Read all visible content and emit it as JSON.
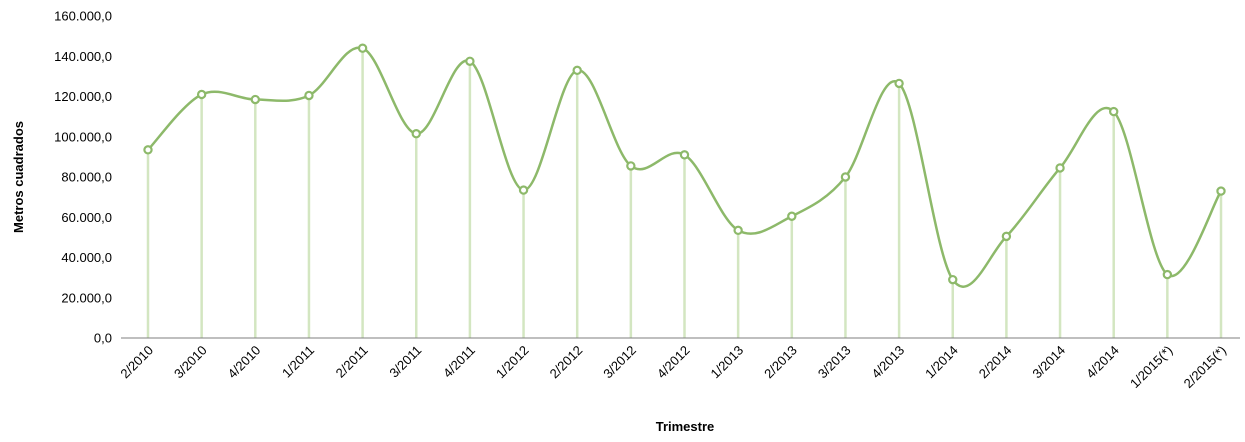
{
  "chart_data": {
    "type": "line",
    "title": "",
    "xlabel": "Trimestre",
    "ylabel": "Metros cuadrados",
    "ylim": [
      0,
      160000
    ],
    "y_ticks": [
      0,
      20000,
      40000,
      60000,
      80000,
      100000,
      120000,
      140000,
      160000
    ],
    "y_tick_labels": [
      "0,0",
      "20.000,0",
      "40.000,0",
      "60.000,0",
      "80.000,0",
      "100.000,0",
      "120.000,0",
      "140.000,0",
      "160.000,0"
    ],
    "grid": false,
    "legend": "none",
    "smoothed": true,
    "drop_lines": true,
    "categories": [
      "2/2010",
      "3/2010",
      "4/2010",
      "1/2011",
      "2/2011",
      "3/2011",
      "4/2011",
      "1/2012",
      "2/2012",
      "3/2012",
      "4/2012",
      "1/2013",
      "2/2013",
      "3/2013",
      "4/2013",
      "1/2014",
      "2/2014",
      "3/2014",
      "4/2014",
      "1/2015(*)",
      "2/2015(*)"
    ],
    "series": [
      {
        "values": [
          93500,
          121000,
          118500,
          120500,
          144000,
          101500,
          137500,
          73500,
          133000,
          85500,
          91000,
          53500,
          60500,
          80000,
          126500,
          29000,
          50500,
          84500,
          112500,
          31500,
          73000
        ]
      }
    ],
    "colors": {
      "line": "#8db96a",
      "marker_fill": "#ffffff",
      "drop_line": "#d3e6c1",
      "axis": "#7f7f7f"
    }
  }
}
